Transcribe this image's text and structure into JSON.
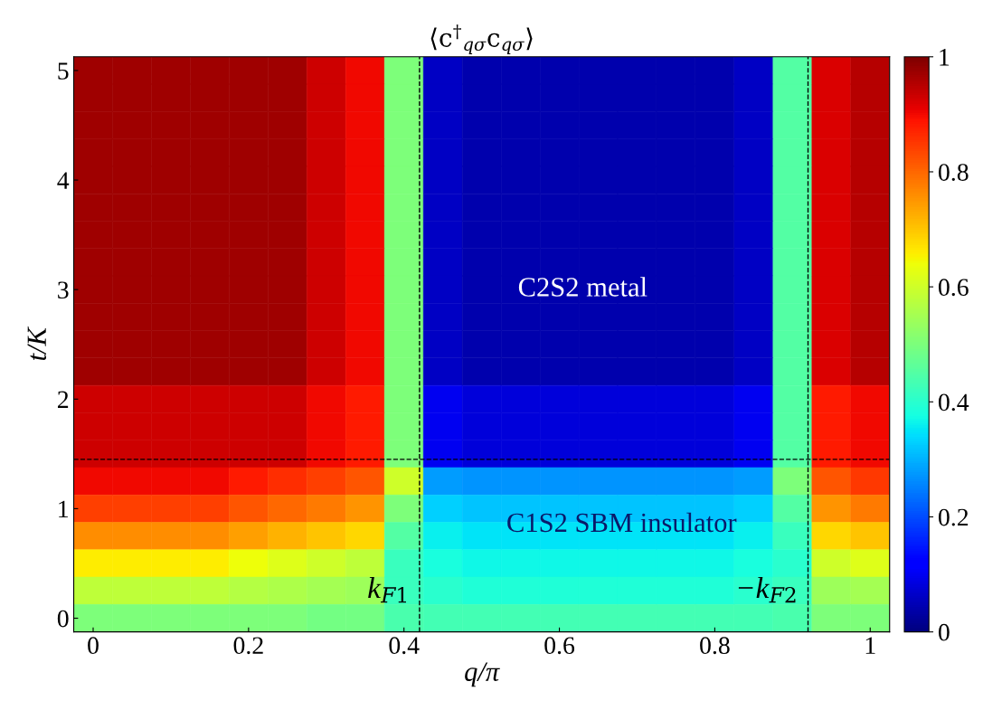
{
  "chart_data": {
    "type": "heatmap",
    "title": "⟨c$^{†}$$_{qσ}$c$_{qσ}$⟩",
    "xlabel": "q/π",
    "ylabel": "t/K",
    "categories": [
      "0",
      null,
      null,
      null,
      "0.2",
      null,
      null,
      null,
      "0.4",
      null,
      null,
      null,
      "0.6",
      null,
      null,
      null,
      "0.8",
      null,
      null,
      null,
      "1"
    ],
    "y_categories": [
      "5",
      null,
      null,
      null,
      "4",
      null,
      null,
      null,
      "3",
      null,
      null,
      null,
      "2",
      null,
      null,
      null,
      "1",
      null,
      null,
      null,
      "0"
    ],
    "clim": [
      0,
      1
    ],
    "cticks": [
      0,
      0.2,
      0.4,
      0.6,
      0.8,
      1
    ],
    "cells": [
      [
        0.97,
        0.97,
        0.97,
        0.97,
        0.97,
        0.97,
        0.93,
        0.9,
        0.5,
        0.06,
        0.04,
        0.04,
        0.04,
        0.04,
        0.04,
        0.04,
        0.04,
        0.06,
        0.45,
        0.92,
        0.95
      ],
      [
        0.97,
        0.97,
        0.97,
        0.97,
        0.97,
        0.97,
        0.93,
        0.9,
        0.5,
        0.06,
        0.04,
        0.04,
        0.04,
        0.04,
        0.04,
        0.04,
        0.04,
        0.06,
        0.45,
        0.92,
        0.95
      ],
      [
        0.97,
        0.97,
        0.97,
        0.97,
        0.97,
        0.97,
        0.93,
        0.9,
        0.5,
        0.06,
        0.04,
        0.04,
        0.04,
        0.04,
        0.04,
        0.04,
        0.04,
        0.06,
        0.45,
        0.92,
        0.95
      ],
      [
        0.97,
        0.97,
        0.97,
        0.97,
        0.97,
        0.97,
        0.93,
        0.9,
        0.5,
        0.06,
        0.04,
        0.04,
        0.04,
        0.04,
        0.04,
        0.04,
        0.04,
        0.06,
        0.45,
        0.92,
        0.95
      ],
      [
        0.97,
        0.97,
        0.97,
        0.97,
        0.97,
        0.97,
        0.93,
        0.9,
        0.5,
        0.06,
        0.04,
        0.04,
        0.04,
        0.04,
        0.04,
        0.04,
        0.04,
        0.06,
        0.45,
        0.92,
        0.95
      ],
      [
        0.97,
        0.97,
        0.97,
        0.97,
        0.97,
        0.97,
        0.93,
        0.9,
        0.5,
        0.06,
        0.04,
        0.04,
        0.04,
        0.04,
        0.04,
        0.04,
        0.04,
        0.06,
        0.45,
        0.92,
        0.95
      ],
      [
        0.97,
        0.97,
        0.97,
        0.97,
        0.97,
        0.97,
        0.93,
        0.9,
        0.5,
        0.06,
        0.04,
        0.04,
        0.04,
        0.04,
        0.04,
        0.04,
        0.04,
        0.06,
        0.45,
        0.92,
        0.95
      ],
      [
        0.97,
        0.97,
        0.97,
        0.97,
        0.97,
        0.97,
        0.93,
        0.9,
        0.5,
        0.06,
        0.04,
        0.04,
        0.04,
        0.04,
        0.04,
        0.04,
        0.04,
        0.06,
        0.45,
        0.92,
        0.95
      ],
      [
        0.97,
        0.97,
        0.97,
        0.97,
        0.97,
        0.97,
        0.93,
        0.9,
        0.5,
        0.06,
        0.04,
        0.04,
        0.04,
        0.04,
        0.04,
        0.04,
        0.04,
        0.06,
        0.45,
        0.92,
        0.95
      ],
      [
        0.97,
        0.97,
        0.97,
        0.97,
        0.97,
        0.97,
        0.93,
        0.9,
        0.5,
        0.06,
        0.04,
        0.04,
        0.04,
        0.04,
        0.04,
        0.04,
        0.04,
        0.06,
        0.45,
        0.92,
        0.95
      ],
      [
        0.97,
        0.97,
        0.97,
        0.97,
        0.97,
        0.97,
        0.93,
        0.9,
        0.5,
        0.06,
        0.04,
        0.04,
        0.04,
        0.04,
        0.04,
        0.04,
        0.04,
        0.06,
        0.45,
        0.92,
        0.95
      ],
      [
        0.97,
        0.97,
        0.97,
        0.97,
        0.97,
        0.97,
        0.93,
        0.9,
        0.5,
        0.06,
        0.04,
        0.04,
        0.04,
        0.04,
        0.04,
        0.04,
        0.04,
        0.06,
        0.45,
        0.92,
        0.95
      ],
      [
        0.93,
        0.93,
        0.93,
        0.93,
        0.93,
        0.93,
        0.9,
        0.88,
        0.5,
        0.1,
        0.08,
        0.08,
        0.08,
        0.08,
        0.08,
        0.08,
        0.08,
        0.1,
        0.45,
        0.88,
        0.9
      ],
      [
        0.93,
        0.93,
        0.93,
        0.93,
        0.93,
        0.93,
        0.9,
        0.88,
        0.5,
        0.1,
        0.08,
        0.08,
        0.08,
        0.08,
        0.08,
        0.08,
        0.08,
        0.1,
        0.45,
        0.88,
        0.9
      ],
      [
        0.93,
        0.93,
        0.93,
        0.93,
        0.93,
        0.93,
        0.9,
        0.88,
        0.5,
        0.1,
        0.08,
        0.08,
        0.08,
        0.08,
        0.08,
        0.08,
        0.08,
        0.1,
        0.45,
        0.88,
        0.9
      ],
      [
        0.9,
        0.9,
        0.9,
        0.9,
        0.88,
        0.86,
        0.84,
        0.82,
        0.6,
        0.28,
        0.27,
        0.27,
        0.27,
        0.27,
        0.27,
        0.27,
        0.27,
        0.28,
        0.5,
        0.82,
        0.85
      ],
      [
        0.84,
        0.84,
        0.84,
        0.84,
        0.82,
        0.8,
        0.78,
        0.75,
        0.5,
        0.33,
        0.32,
        0.32,
        0.32,
        0.32,
        0.32,
        0.32,
        0.32,
        0.33,
        0.45,
        0.75,
        0.78
      ],
      [
        0.76,
        0.76,
        0.76,
        0.76,
        0.74,
        0.72,
        0.7,
        0.68,
        0.45,
        0.36,
        0.35,
        0.35,
        0.35,
        0.35,
        0.35,
        0.35,
        0.35,
        0.36,
        0.42,
        0.68,
        0.7
      ],
      [
        0.66,
        0.66,
        0.66,
        0.66,
        0.64,
        0.62,
        0.6,
        0.58,
        0.42,
        0.38,
        0.37,
        0.37,
        0.37,
        0.37,
        0.37,
        0.37,
        0.37,
        0.38,
        0.4,
        0.6,
        0.62
      ],
      [
        0.58,
        0.58,
        0.58,
        0.58,
        0.57,
        0.56,
        0.55,
        0.54,
        0.42,
        0.4,
        0.39,
        0.39,
        0.39,
        0.39,
        0.39,
        0.39,
        0.39,
        0.4,
        0.42,
        0.54,
        0.55
      ],
      [
        0.5,
        0.5,
        0.5,
        0.5,
        0.5,
        0.5,
        0.49,
        0.49,
        0.44,
        0.43,
        0.43,
        0.43,
        0.43,
        0.43,
        0.43,
        0.43,
        0.43,
        0.43,
        0.44,
        0.5,
        0.5
      ]
    ],
    "annotations": [
      "C2S2 metal",
      "C1S2 SBM insulator",
      "k$_{F1}$",
      "−k$_{F2}$"
    ]
  }
}
